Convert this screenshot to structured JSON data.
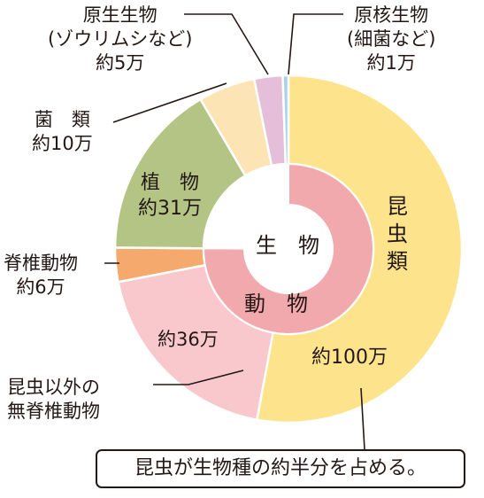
{
  "chart_data": {
    "type": "pie",
    "title": "",
    "outer_ring": [
      {
        "label": "昆虫類",
        "value_label": "約100万",
        "value": 100,
        "color": "#fde48c"
      },
      {
        "label": "昆虫以外の無脊椎動物",
        "value_label": "約36万",
        "value": 36,
        "color": "#f8c8cc"
      },
      {
        "label": "脊椎動物",
        "value_label": "約6万",
        "value": 6,
        "color": "#f5a96c"
      },
      {
        "label": "植物",
        "value_label": "約31万",
        "value": 31,
        "color": "#b3c484"
      },
      {
        "label": "菌類",
        "value_label": "約10万",
        "value": 10,
        "color": "#fde4b4"
      },
      {
        "label": "原生生物(ゾウリムシなど)",
        "value_label": "約5万",
        "value": 5,
        "color": "#e5bfd9"
      },
      {
        "label": "原核生物(細菌など)",
        "value_label": "約1万",
        "value": 1,
        "color": "#a7d4e6"
      }
    ],
    "inner_ring": [
      {
        "label": "動物",
        "value": 142,
        "color": "#f2a9ad"
      }
    ],
    "center_label": "生物"
  },
  "labels": {
    "insects": [
      "昆",
      "虫",
      "類"
    ],
    "insects_value": "約100万",
    "invert": [
      "昆虫以外の",
      "無脊椎動物"
    ],
    "invert_value": "約36万",
    "vert": [
      "脊椎動物",
      "約6万"
    ],
    "plants": [
      "植　物",
      "約31万"
    ],
    "fungi": [
      "菌　類",
      "約10万"
    ],
    "protists": [
      "原生生物",
      "(ゾウリムシなど)",
      "約5万"
    ],
    "prokaryotes": [
      "原核生物",
      "(細菌など)",
      "約1万"
    ],
    "center": "生　物",
    "animals": "動　物"
  },
  "note": "昆虫が生物種の約半分を占める。"
}
